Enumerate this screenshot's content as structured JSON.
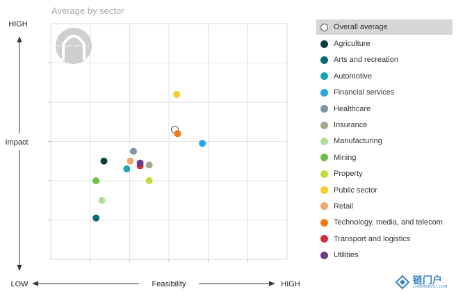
{
  "chart_data": {
    "type": "scatter",
    "title": "Average by sector",
    "xlabel": "Feasibility",
    "ylabel": "Impact",
    "x_low_label": "LOW",
    "x_high_label": "HIGH",
    "y_high_label": "HIGH",
    "xlim": [
      0,
      6
    ],
    "ylim": [
      0,
      6
    ],
    "grid": true,
    "legend_position": "right",
    "series": [
      {
        "name": "Overall average",
        "color": "#ffffff",
        "hollow": true,
        "x": 3.15,
        "y": 3.3
      },
      {
        "name": "Agriculture",
        "color": "#0f3d3e",
        "x": 1.35,
        "y": 2.5
      },
      {
        "name": "Arts and recreation",
        "color": "#0b6b73",
        "x": 1.15,
        "y": 1.05
      },
      {
        "name": "Automotive",
        "color": "#1aa5ad",
        "x": 1.93,
        "y": 2.3
      },
      {
        "name": "Financial services",
        "color": "#2aa6e0",
        "x": 3.85,
        "y": 2.95
      },
      {
        "name": "Healthcare",
        "color": "#7b95a8",
        "x": 2.1,
        "y": 2.75
      },
      {
        "name": "Insurance",
        "color": "#a8a88e",
        "x": 2.5,
        "y": 2.4
      },
      {
        "name": "Manufacturing",
        "color": "#b5dca0",
        "x": 1.3,
        "y": 1.5
      },
      {
        "name": "Mining",
        "color": "#6cbf4a",
        "x": 1.15,
        "y": 2.0
      },
      {
        "name": "Property",
        "color": "#c2dc3c",
        "x": 2.5,
        "y": 2.0
      },
      {
        "name": "Public sector",
        "color": "#f7cc2c",
        "x": 3.2,
        "y": 4.2
      },
      {
        "name": "Retail",
        "color": "#f5a56c",
        "x": 2.02,
        "y": 2.5
      },
      {
        "name": "Technology, media, and telecom",
        "color": "#ef7a1a",
        "x": 3.22,
        "y": 3.2
      },
      {
        "name": "Transport and logistics",
        "color": "#d42a3a",
        "x": 2.27,
        "y": 2.38
      },
      {
        "name": "Utilities",
        "color": "#6e3a8a",
        "x": 2.27,
        "y": 2.45
      }
    ]
  },
  "logo": {
    "text": "链门户",
    "sub": "LIANMENHU.COM"
  }
}
